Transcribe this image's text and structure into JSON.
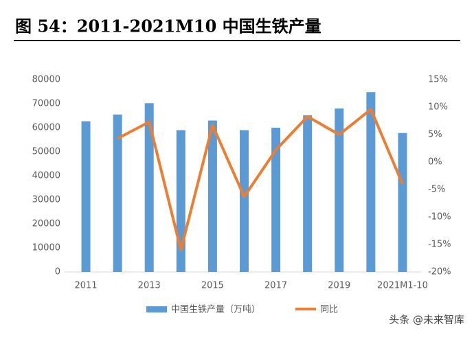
{
  "title": "图 54：2011-2021M10 中国生铁产量",
  "watermark": "头条 @未来智库",
  "chart_data": {
    "type": "bar-line",
    "categories": [
      "2011",
      null,
      "2013",
      null,
      "2015",
      null,
      "2017",
      null,
      "2019",
      null,
      "2021M1-10"
    ],
    "series": [
      {
        "name": "中国生铁产量（万吨）",
        "type": "bar",
        "color": "#5b9bd5",
        "values": [
          62700,
          65500,
          70200,
          59000,
          63000,
          59000,
          60000,
          65200,
          68000,
          74800,
          57800
        ]
      },
      {
        "name": "同比",
        "type": "line",
        "axis": "y2",
        "color": "#ed7d31",
        "values": [
          null,
          4.3,
          7.3,
          -16,
          6.7,
          -6.3,
          2.2,
          8.3,
          5,
          9.6,
          -4
        ]
      }
    ],
    "ylim": [
      0,
      80000
    ],
    "yticks": [
      0,
      10000,
      20000,
      30000,
      40000,
      50000,
      60000,
      70000,
      80000
    ],
    "y2lim": [
      -20,
      15
    ],
    "y2ticks": [
      {
        "value": -20,
        "label": "-20%"
      },
      {
        "value": -15,
        "label": "-15%"
      },
      {
        "value": -10,
        "label": "-10%"
      },
      {
        "value": -5,
        "label": "-5%"
      },
      {
        "value": 0,
        "label": "0%"
      },
      {
        "value": 5,
        "label": "5%"
      },
      {
        "value": 10,
        "label": "10%"
      },
      {
        "value": 15,
        "label": "15%"
      }
    ],
    "grid": false,
    "legend": "bottom"
  }
}
